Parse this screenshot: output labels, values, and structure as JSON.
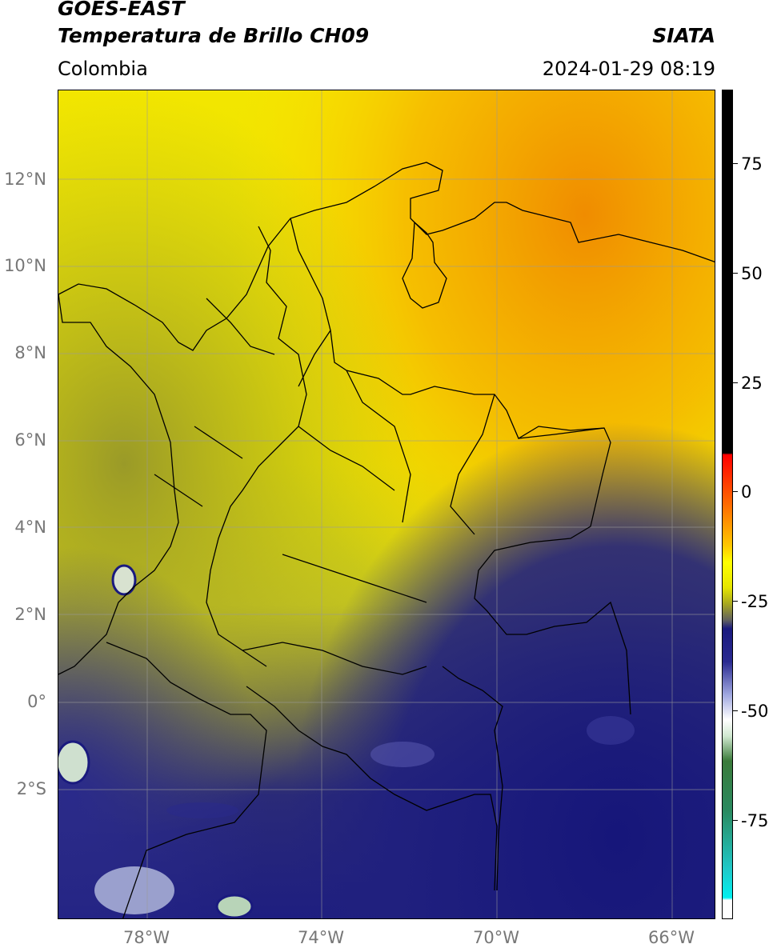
{
  "header": {
    "satellite": "GOES-EAST",
    "product": "Temperatura de Brillo CH09",
    "region": "Colombia",
    "agency": "SIATA",
    "datetime": "2024-01-29 08:19"
  },
  "map": {
    "lat_labels": [
      {
        "key": "12n",
        "text": "12°N",
        "value": 12
      },
      {
        "key": "10n",
        "text": "10°N",
        "value": 10
      },
      {
        "key": "8n",
        "text": "8°N",
        "value": 8
      },
      {
        "key": "6n",
        "text": "6°N",
        "value": 6
      },
      {
        "key": "4n",
        "text": "4°N",
        "value": 4
      },
      {
        "key": "2n",
        "text": "2°N",
        "value": 2
      },
      {
        "key": "0",
        "text": "0°",
        "value": 0
      },
      {
        "key": "2s",
        "text": "2°S",
        "value": -2
      }
    ],
    "lon_labels": [
      {
        "key": "78w",
        "text": "78°W",
        "value": -78
      },
      {
        "key": "74w",
        "text": "74°W",
        "value": -74
      },
      {
        "key": "70w",
        "text": "70°W",
        "value": -70
      },
      {
        "key": "66w",
        "text": "66°W",
        "value": -66
      }
    ],
    "colors": {
      "hot_orange": "#f29a00",
      "yellow": "#ffff00",
      "olive": "#a8a820",
      "navy": "#1a1a7e",
      "white_cloud": "#e8ecf4",
      "green": "#3a8a3a",
      "grid": "#9a9a9a",
      "boundary": "#000000"
    }
  },
  "colorbar": {
    "ticks": [
      {
        "key": "75",
        "text": "75",
        "value": 75
      },
      {
        "key": "50",
        "text": "50",
        "value": 50
      },
      {
        "key": "25",
        "text": "25",
        "value": 25
      },
      {
        "key": "0",
        "text": "0",
        "value": 0
      },
      {
        "key": "m25",
        "text": "-25",
        "value": -25
      },
      {
        "key": "m50",
        "text": "-50",
        "value": -50
      },
      {
        "key": "m75",
        "text": "-75",
        "value": -75
      }
    ]
  }
}
